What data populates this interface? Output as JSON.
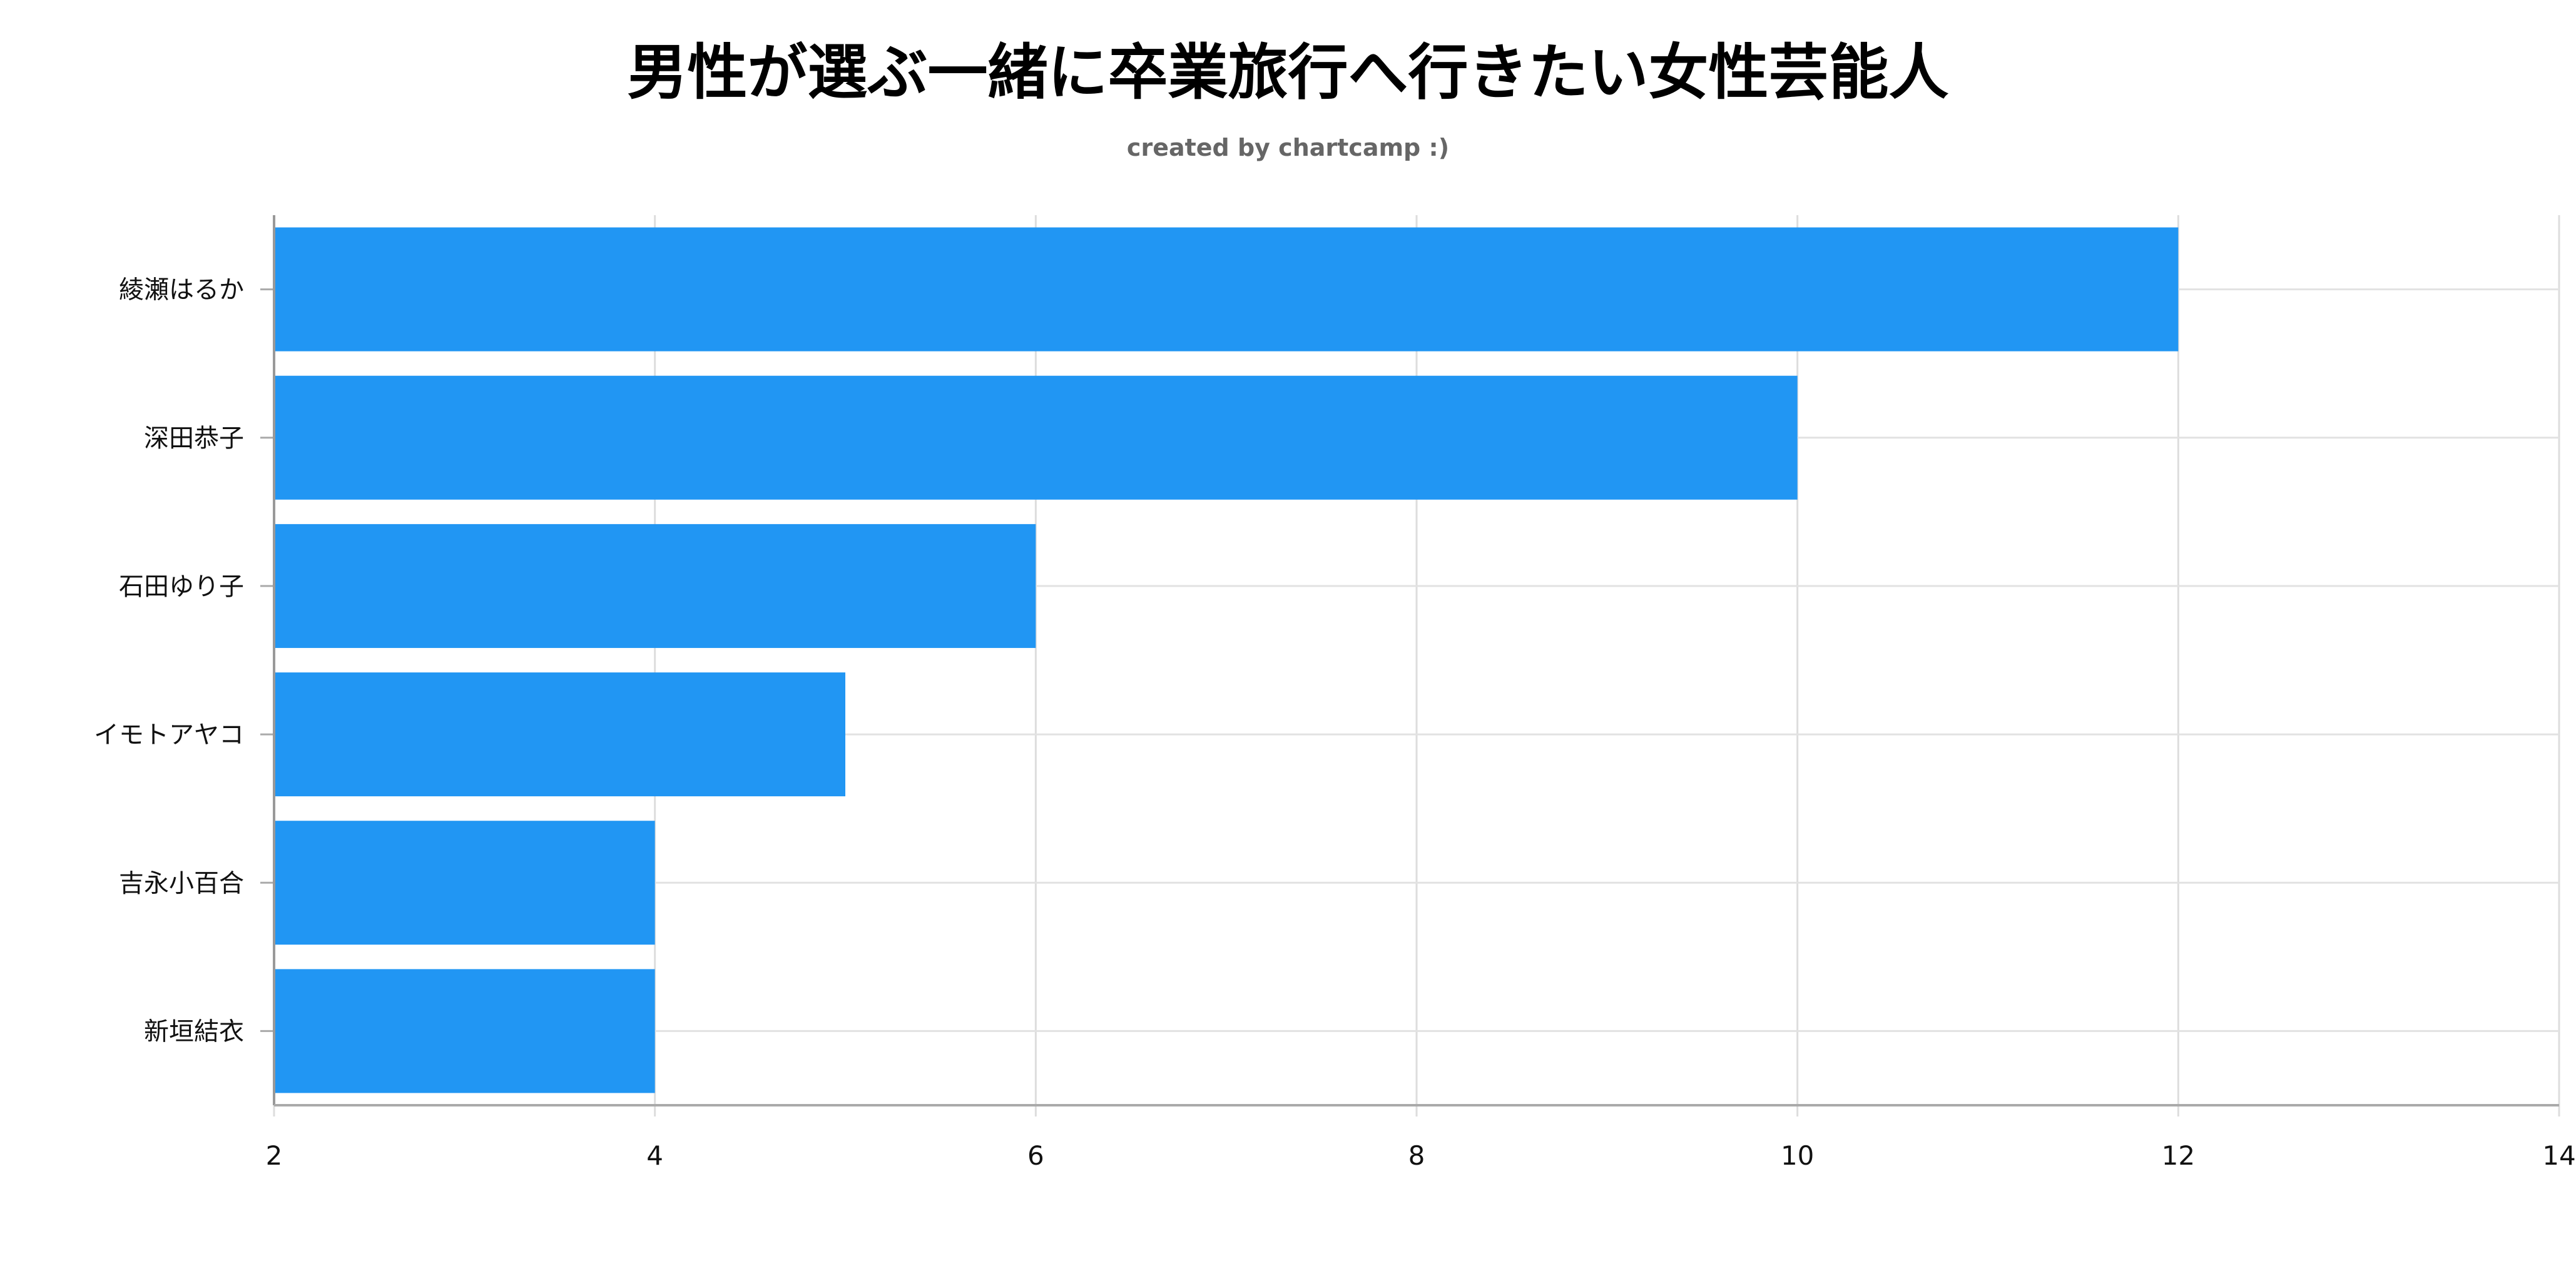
{
  "chart_data": {
    "type": "bar",
    "orientation": "horizontal",
    "title": "男性が選ぶ一緒に卒業旅行へ行きたい女性芸能人",
    "subtitle": "created by chartcamp :)",
    "categories": [
      "綾瀬はるか",
      "深田恭子",
      "石田ゆり子",
      "イモトアヤコ",
      "吉永小百合",
      "新垣結衣"
    ],
    "values": [
      12,
      10,
      6,
      5,
      4,
      4
    ],
    "xlim": [
      2,
      14
    ],
    "xticks": [
      2,
      4,
      6,
      8,
      10,
      12,
      14
    ],
    "xlabel": "",
    "ylabel": "",
    "grid": true,
    "bar_color": "#2196F3"
  }
}
